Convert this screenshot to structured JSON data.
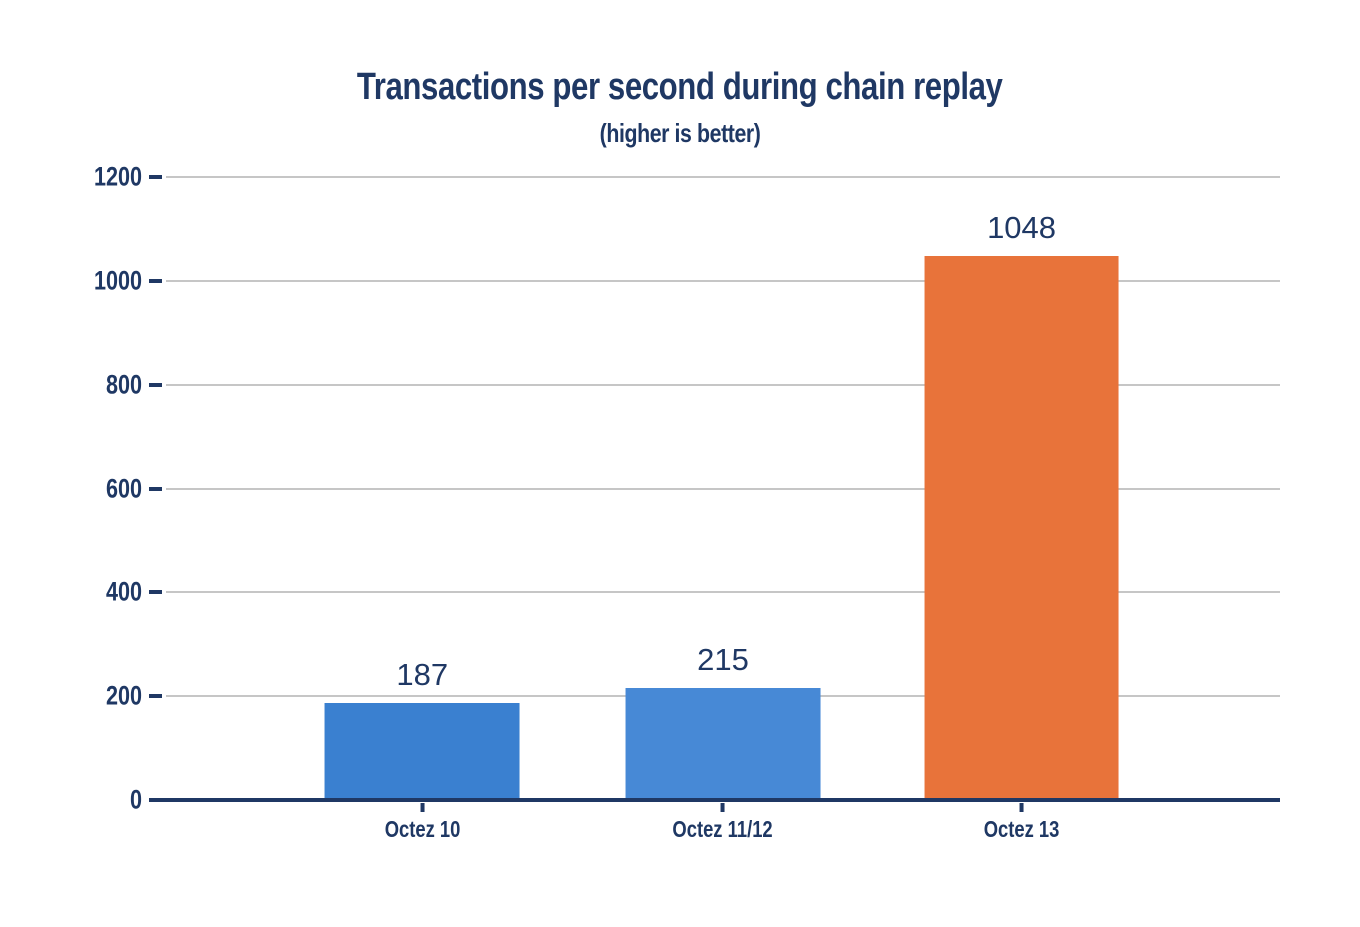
{
  "title": "Transactions per second during chain replay",
  "subtitle": "(higher is better)",
  "colors": {
    "text_navy": "#1f3864",
    "axis": "#1f3864",
    "gridline": "#c6c6c6",
    "bar_blue_1": "#3a80d0",
    "bar_blue_2": "#4789d6",
    "bar_orange": "#e8733a",
    "background": "#ffffff"
  },
  "chart_data": {
    "type": "bar",
    "title": "Transactions per second during chain replay",
    "subtitle": "(higher is better)",
    "categories": [
      "Octez 10",
      "Octez 11/12",
      "Octez 13"
    ],
    "values": [
      187,
      215,
      1048
    ],
    "bar_colors": [
      "#3a80d0",
      "#4789d6",
      "#e8733a"
    ],
    "data_labels": [
      "187",
      "215",
      "1048"
    ],
    "xlabel": "",
    "ylabel": "",
    "ylim": [
      0,
      1200
    ],
    "yticks": [
      0,
      200,
      400,
      600,
      800,
      1000,
      1200
    ],
    "grid": true,
    "legend": false
  }
}
